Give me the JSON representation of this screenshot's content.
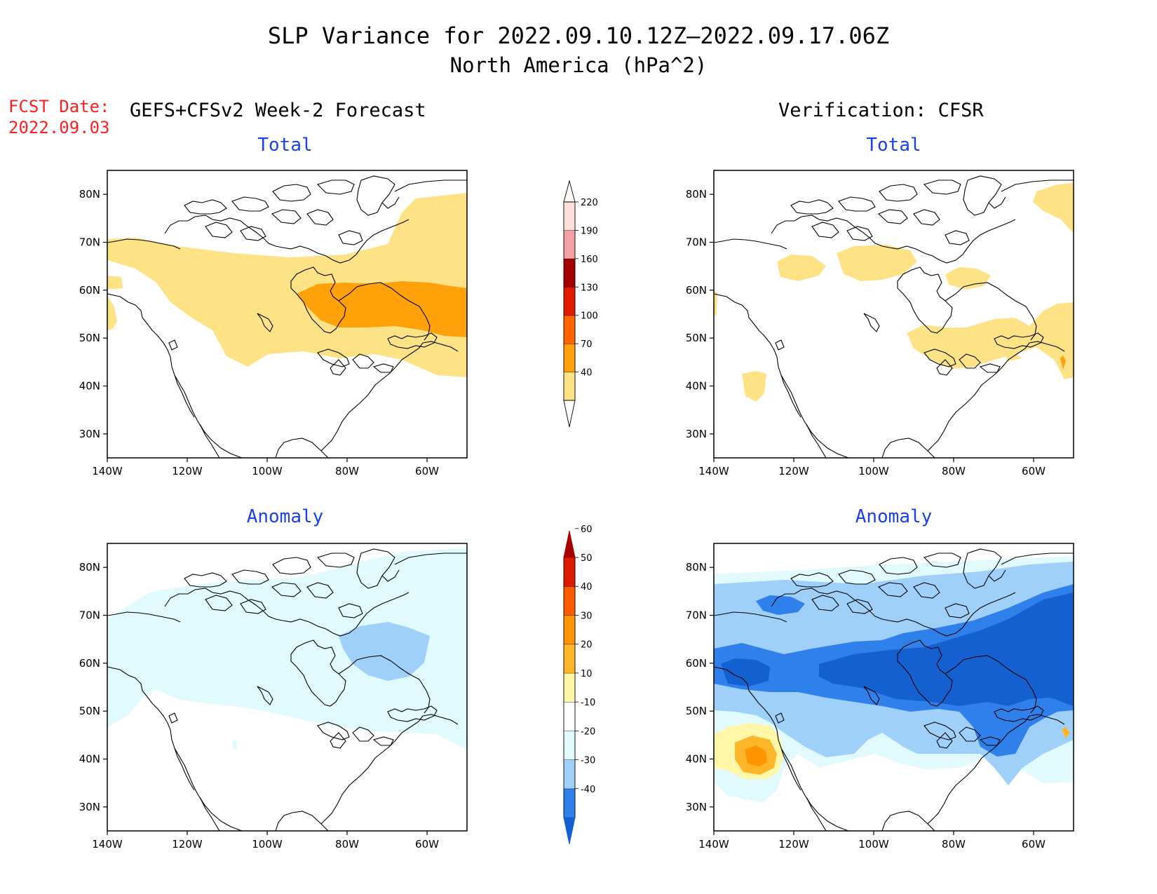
{
  "title": "SLP Variance for 2022.09.10.12Z–2022.09.17.06Z",
  "subtitle": "North America (hPa^2)",
  "fcst_date_label": "FCST Date:",
  "fcst_date": "2022.09.03",
  "left_header": "GEFS+CFSv2 Week-2 Forecast",
  "right_header": "Verification: CFSR",
  "panels": {
    "fc_total": {
      "title": "Total"
    },
    "vf_total": {
      "title": "Total"
    },
    "fc_anom": {
      "title": "Anomaly"
    },
    "vf_anom": {
      "title": "Anomaly"
    }
  },
  "axes": {
    "lat_labels": [
      "80N",
      "70N",
      "60N",
      "50N",
      "40N",
      "30N"
    ],
    "lat_values": [
      80,
      70,
      60,
      50,
      40,
      30
    ],
    "lon_labels": [
      "140W",
      "120W",
      "100W",
      "80W",
      "60W"
    ],
    "lon_values": [
      -140,
      -120,
      -100,
      -80,
      -60
    ],
    "lon_range": [
      -140,
      -50
    ],
    "lat_range": [
      25,
      85
    ]
  },
  "colorbars": {
    "total": {
      "levels": [
        "40",
        "70",
        "100",
        "130",
        "160",
        "190",
        "220"
      ],
      "colors": [
        "#fee386",
        "#fea10a",
        "#fe6400",
        "#e01a00",
        "#a50000",
        "#f5a0a0",
        "#fde0dc"
      ]
    },
    "anomaly": {
      "levels": [
        "-40",
        "-30",
        "-20",
        "-10",
        "10",
        "20",
        "30",
        "40",
        "50",
        "60"
      ],
      "colors": [
        "#1560d0",
        "#2f80ea",
        "#9fd0fa",
        "#e0fafe",
        "#ffffff",
        "#fff7a8",
        "#fdb52a",
        "#fe9500",
        "#fe5a00",
        "#dc1a00",
        "#a50000"
      ]
    }
  },
  "chart_data": [
    {
      "type": "map",
      "title": "Total",
      "product": "GEFS+CFSv2 Week-2 Forecast",
      "units": "hPa^2",
      "shaded_regions": [
        {
          "level": "40-70",
          "description": "broad band ~45N-70N across Canada, Greenland and NE US"
        },
        {
          "level": "70-100",
          "description": "core over Hudson Bay / Labrador ~52N-60N, 90W-50W"
        }
      ]
    },
    {
      "type": "map",
      "title": "Total",
      "product": "Verification: CFSR",
      "units": "hPa^2",
      "shaded_regions": [
        {
          "level": "40-70",
          "description": "patches over NW Canada, Hudson Bay, Great Lakes-Maritimes, Gulf of Alaska ~40N"
        },
        {
          "level": "70-100",
          "description": "tiny spot near 52W 43N"
        }
      ]
    },
    {
      "type": "map",
      "title": "Anomaly",
      "product": "GEFS+CFSv2 Week-2 Forecast",
      "units": "hPa^2",
      "shaded_regions": [
        {
          "level": "-20 to -10",
          "description": "most of Canada and Arctic"
        },
        {
          "level": "-30 to -20",
          "description": "Hudson Bay to Labrador ~55N-65N"
        }
      ]
    },
    {
      "type": "map",
      "title": "Anomaly",
      "product": "Verification: CFSR",
      "units": "hPa^2",
      "shaded_regions": [
        {
          "level": "<= -30",
          "description": "strong band 55N-65N across Canada"
        },
        {
          "level": "-30 to -10",
          "description": "broad area 30N-77N"
        },
        {
          "level": "10 to 30",
          "description": "positive center off US west coast ~40N 130W"
        },
        {
          "level": "20 to 30",
          "description": "small spot near 52W 43N"
        }
      ]
    }
  ]
}
